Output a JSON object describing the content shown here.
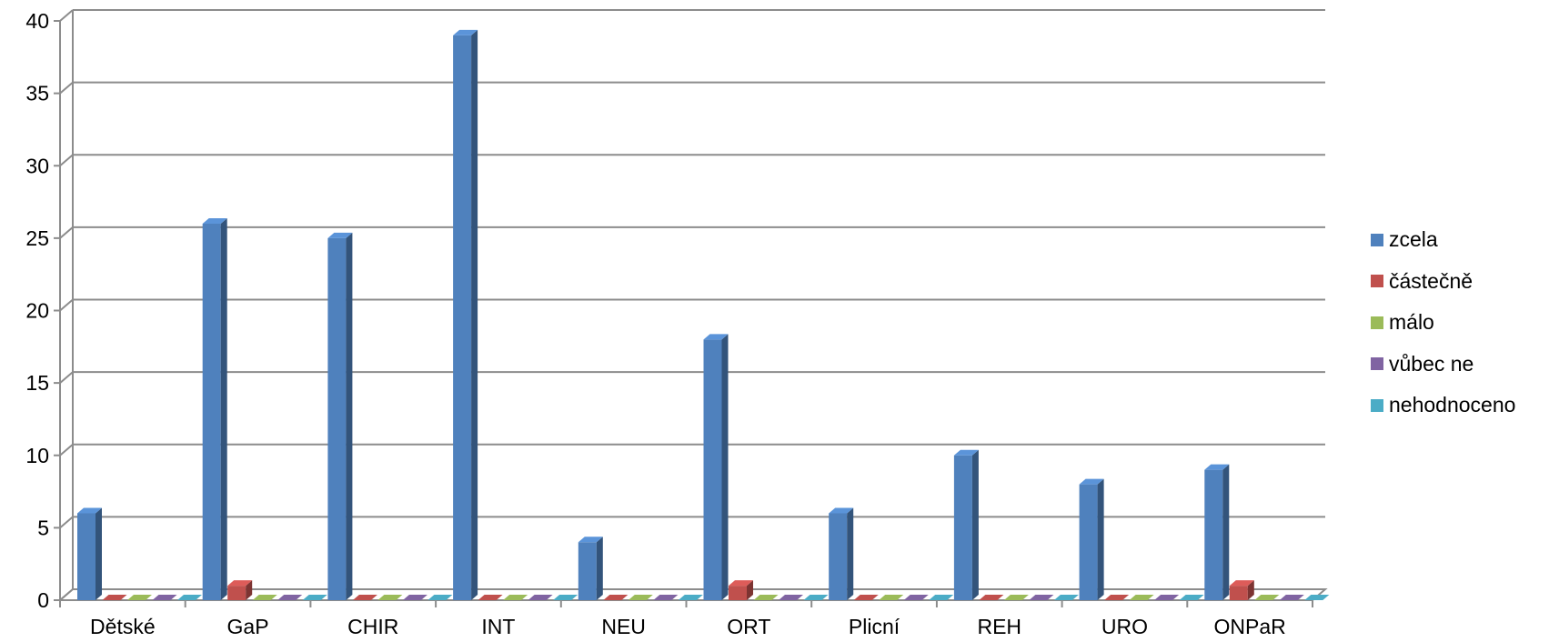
{
  "chart_data": {
    "type": "bar",
    "categories": [
      "Dětské",
      "GaP",
      "CHIR",
      "INT",
      "NEU",
      "ORT",
      "Plicní",
      "REH",
      "URO",
      "ONPaR"
    ],
    "series": [
      {
        "name": "zcela",
        "color": "#4F81BD",
        "values": [
          6,
          26,
          25,
          39,
          4,
          18,
          6,
          10,
          8,
          9
        ]
      },
      {
        "name": "částečně",
        "color": "#C0504D",
        "values": [
          0,
          1,
          0,
          0,
          0,
          1,
          0,
          0,
          0,
          1
        ]
      },
      {
        "name": "málo",
        "color": "#9BBB59",
        "values": [
          0,
          0,
          0,
          0,
          0,
          0,
          0,
          0,
          0,
          0
        ]
      },
      {
        "name": "vůbec ne",
        "color": "#8064A2",
        "values": [
          0,
          0,
          0,
          0,
          0,
          0,
          0,
          0,
          0,
          0
        ]
      },
      {
        "name": "nehodnoceno",
        "color": "#4BACC6",
        "values": [
          0,
          0,
          0,
          0,
          0,
          0,
          0,
          0,
          0,
          0
        ]
      }
    ],
    "yticks": [
      0,
      5,
      10,
      15,
      20,
      25,
      30,
      35,
      40
    ],
    "ylim": [
      0,
      40
    ],
    "grid": true,
    "legend_position": "right"
  }
}
